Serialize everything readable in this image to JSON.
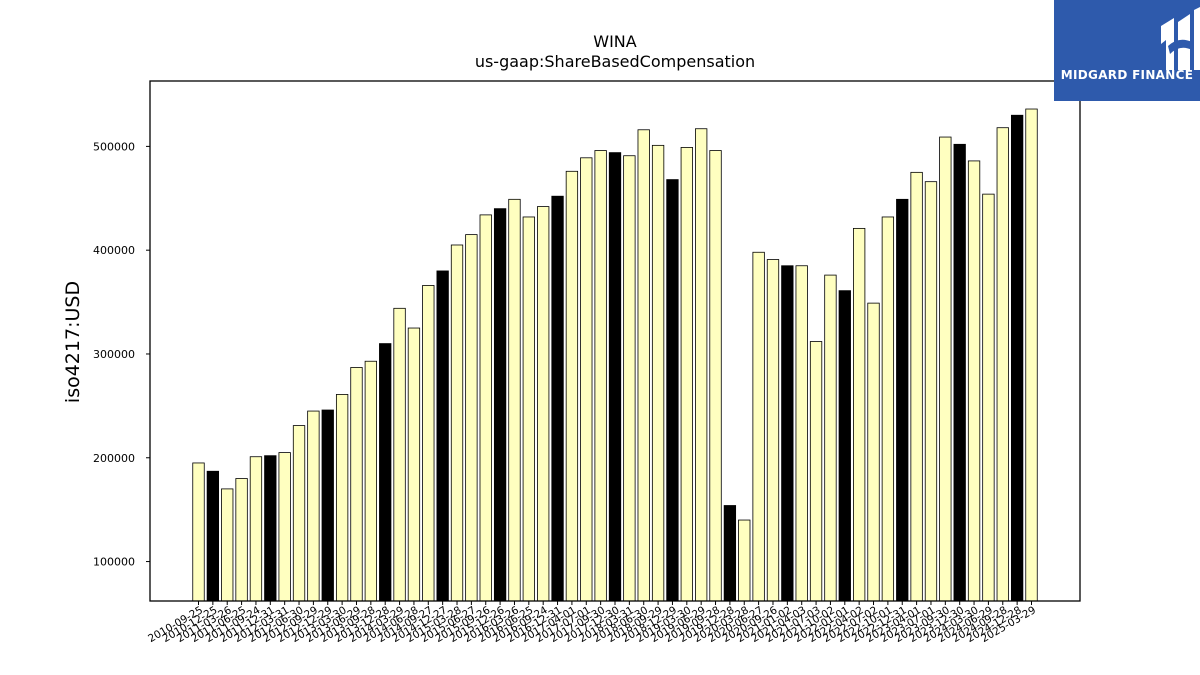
{
  "brand": {
    "name": "MIDGARD FINANCE",
    "background": "#2e5aac"
  },
  "chart_data": {
    "type": "bar",
    "title": "WINA",
    "subtitle": "us-gaap:ShareBasedCompensation",
    "xlabel": "",
    "ylabel": "iso4217:USD",
    "ylim": [
      62000,
      563000
    ],
    "yticks": [
      100000,
      200000,
      300000,
      400000,
      500000
    ],
    "grid": false,
    "legend": "none",
    "colors": {
      "default": "#ffffc0",
      "highlight": "#000000",
      "edge": "#000000"
    },
    "categories": [
      "2010-09-25",
      "2010-12-25",
      "2011-03-26",
      "2011-06-25",
      "2011-09-24",
      "2011-12-31",
      "2012-03-31",
      "2012-06-30",
      "2012-09-29",
      "2012-12-29",
      "2013-03-30",
      "2013-06-29",
      "2013-09-28",
      "2013-12-28",
      "2014-03-29",
      "2014-06-28",
      "2014-09-27",
      "2014-12-27",
      "2015-03-28",
      "2015-06-27",
      "2015-09-26",
      "2015-12-26",
      "2016-03-26",
      "2016-06-25",
      "2016-09-24",
      "2016-12-31",
      "2017-04-01",
      "2017-07-01",
      "2017-09-30",
      "2017-12-30",
      "2018-03-31",
      "2018-06-30",
      "2018-09-29",
      "2018-12-29",
      "2019-03-30",
      "2019-06-29",
      "2019-09-28",
      "2019-12-28",
      "2020-03-28",
      "2020-06-27",
      "2020-09-26",
      "2021-01-02",
      "2021-04-03",
      "2021-07-03",
      "2021-10-02",
      "2022-01-01",
      "2022-04-02",
      "2022-07-02",
      "2022-10-01",
      "2022-12-31",
      "2023-04-01",
      "2023-07-01",
      "2023-09-30",
      "2023-12-30",
      "2024-03-30",
      "2024-06-29",
      "2024-09-28",
      "2024-12-28",
      "2025-03-29"
    ],
    "values": [
      195000,
      187000,
      170000,
      180000,
      201000,
      202000,
      205000,
      231000,
      245000,
      246000,
      261000,
      287000,
      293000,
      310000,
      344000,
      325000,
      366000,
      380000,
      405000,
      415000,
      434000,
      440000,
      449000,
      432000,
      442000,
      452000,
      476000,
      489000,
      496000,
      494000,
      491000,
      516000,
      501000,
      468000,
      499000,
      517000,
      496000,
      154000,
      140000,
      398000,
      391000,
      385000,
      385000,
      312000,
      376000,
      361000,
      421000,
      349000,
      432000,
      449000,
      475000,
      466000,
      509000,
      502000,
      486000,
      454000,
      518000,
      530000,
      536000
    ],
    "highlight": [
      false,
      true,
      false,
      false,
      false,
      true,
      false,
      false,
      false,
      true,
      false,
      false,
      false,
      true,
      false,
      false,
      false,
      true,
      false,
      false,
      false,
      true,
      false,
      false,
      false,
      true,
      false,
      false,
      false,
      true,
      false,
      false,
      false,
      true,
      false,
      false,
      false,
      true,
      false,
      false,
      false,
      true,
      false,
      false,
      false,
      true,
      false,
      false,
      false,
      true,
      false,
      false,
      false,
      true,
      false,
      false,
      false,
      true,
      false
    ]
  }
}
